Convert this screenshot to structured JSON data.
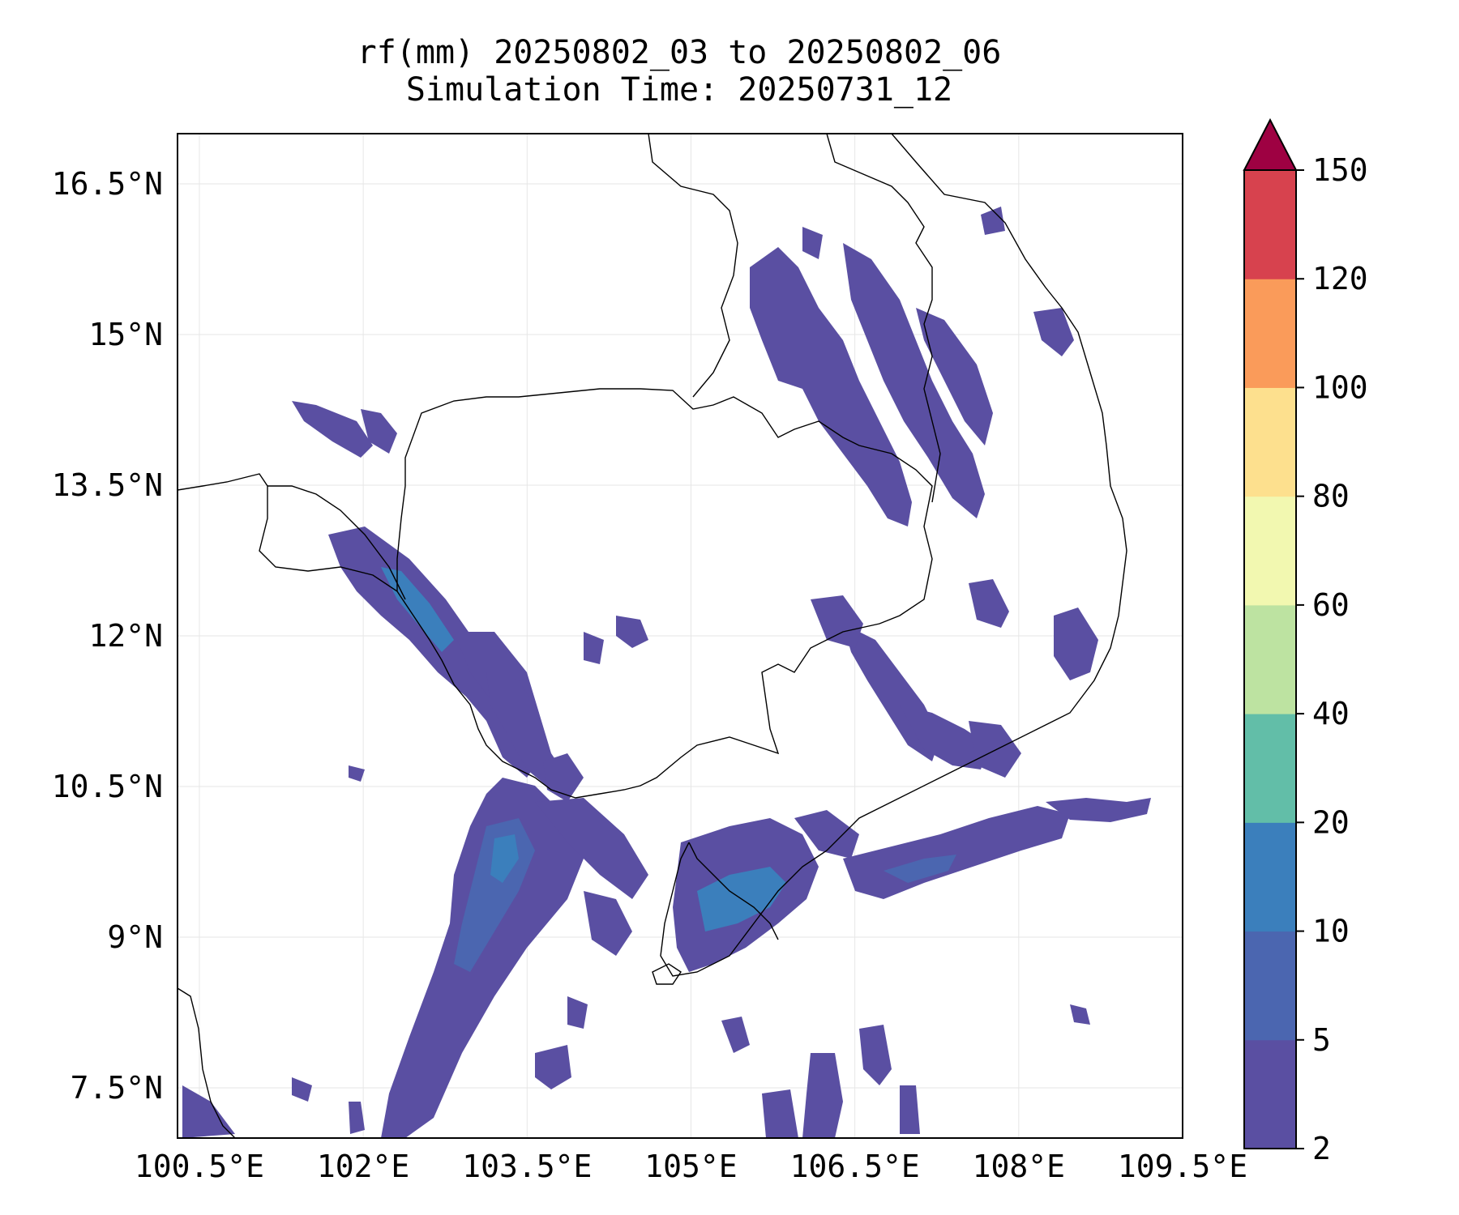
{
  "title": {
    "line1": "rf(mm) 20250802_03 to 20250802_06",
    "line2": "Simulation Time: 20250731_12"
  },
  "map": {
    "lon_range": [
      100.3,
      109.5
    ],
    "lat_range": [
      7.0,
      17.0
    ],
    "lon_ticks": [
      {
        "value": 100.5,
        "label": "100.5°E"
      },
      {
        "value": 102.0,
        "label": "102°E"
      },
      {
        "value": 103.5,
        "label": "103.5°E"
      },
      {
        "value": 105.0,
        "label": "105°E"
      },
      {
        "value": 106.5,
        "label": "106.5°E"
      },
      {
        "value": 108.0,
        "label": "108°E"
      },
      {
        "value": 109.5,
        "label": "109.5°E"
      }
    ],
    "lat_ticks": [
      {
        "value": 16.5,
        "label": "16.5°N"
      },
      {
        "value": 15.0,
        "label": "15°N"
      },
      {
        "value": 13.5,
        "label": "13.5°N"
      },
      {
        "value": 12.0,
        "label": "12°N"
      },
      {
        "value": 10.5,
        "label": "10.5°N"
      },
      {
        "value": 9.0,
        "label": "9°N"
      },
      {
        "value": 7.5,
        "label": "7.5°N"
      }
    ],
    "grid": true
  },
  "colorbar": {
    "extend": "max",
    "levels": [
      {
        "label": "2"
      },
      {
        "label": "5"
      },
      {
        "label": "10"
      },
      {
        "label": "20"
      },
      {
        "label": "40"
      },
      {
        "label": "60"
      },
      {
        "label": "80"
      },
      {
        "label": "100"
      },
      {
        "label": "120"
      },
      {
        "label": "150"
      }
    ],
    "colors": [
      "#5a4fa2",
      "#4b66b0",
      "#3b7fbc",
      "#62bea8",
      "#bde3a1",
      "#f2f8b0",
      "#fde08e",
      "#fa9b5a",
      "#d7424e",
      "#9e0142"
    ]
  },
  "rain_colors": {
    "light": "#5a4fa2",
    "moderate": "#4b66b0",
    "heavy": "#3b7fbc"
  }
}
